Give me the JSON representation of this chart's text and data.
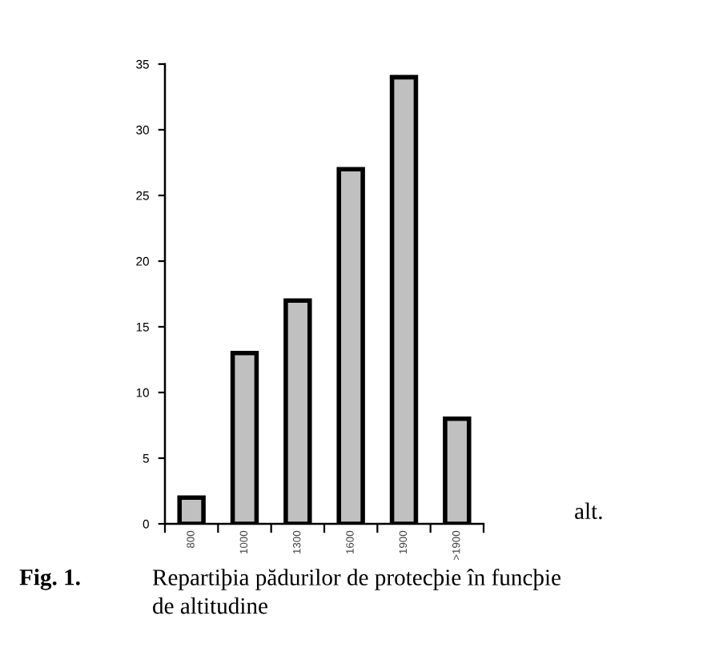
{
  "chart_data": {
    "type": "bar",
    "title": "Repartiþia pădurilor de protecþie în funcþie\nde altitudine",
    "annotations": [
      "Fig. 1."
    ],
    "xlabel": "alt.",
    "categories": [
      "800",
      "1000",
      "1300",
      "1600",
      "1900",
      ">1900"
    ],
    "values": [
      2,
      13,
      17,
      27,
      34,
      8
    ],
    "color": "#c0c0c0",
    "ylim": [
      0,
      35
    ],
    "yticks": [
      0,
      5,
      10,
      15,
      20,
      25,
      30,
      35
    ]
  }
}
